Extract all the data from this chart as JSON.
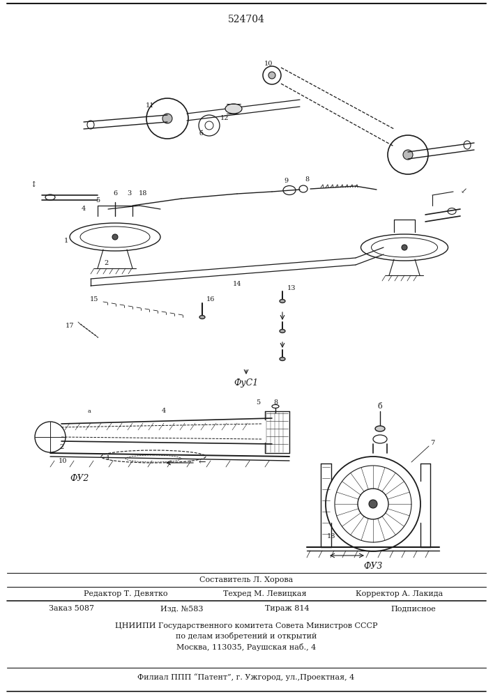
{
  "patent_number": "524704",
  "composer_line": "Составитель Л. Хорова",
  "editor_label": "Редактор",
  "editor_name": "Т. Девятко",
  "tech_label": "Техред",
  "tech_name": "М. Левицкая",
  "corrector_label": "Корректор",
  "corrector_name": "А. Лакида",
  "order_label": "Заказ 5087",
  "izd_label": "Изд. №583",
  "tirazh_label": "Тираж 814",
  "podp_label": "Подписное",
  "cniip_line1": "ЦНИИПИ Государственного комитета Совета Министров СССР",
  "cniip_line2": "по делам изобретений и открытий",
  "cniip_line3": "Москва, 113035, Раушская наб., 4",
  "filial_line": "Филиал ППП “Патент”, г. Ужгород, ул.,Проектная, 4",
  "fig1_label": "ФуС1",
  "fig2_label": "ФУ2",
  "fig3_label": "ФУ3",
  "bg_color": "#ffffff",
  "text_color": "#1a1a1a",
  "line_color": "#1a1a1a",
  "fig_width": 7.07,
  "fig_height": 10.0,
  "dpi": 100
}
